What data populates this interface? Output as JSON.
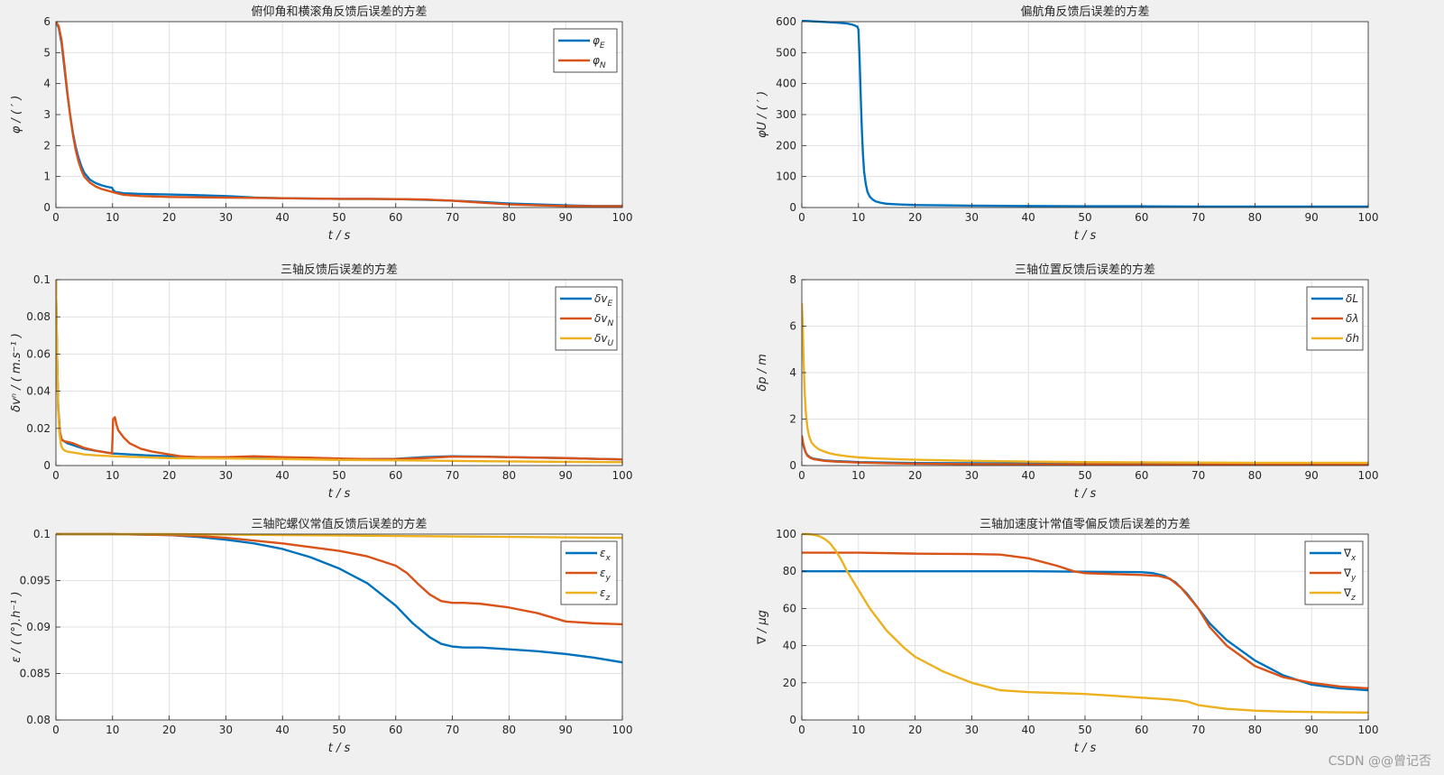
{
  "figure": {
    "background": "#f0f0f0",
    "watermark": "CSDN @@曾记否"
  },
  "colors": {
    "blue": "#0072BD",
    "orange": "#D95319",
    "yellow": "#EDB120",
    "grid": "#e1e1e1",
    "axis": "#262626"
  },
  "chart_data": [
    {
      "id": "attitude-pr",
      "type": "line",
      "title": "俯仰角和横滚角反馈后误差的方差",
      "xlabel": "t / s",
      "ylabel": "φ / ( ′ )",
      "xlim": [
        0,
        100
      ],
      "ylim": [
        0,
        6
      ],
      "xticks": [
        0,
        10,
        20,
        30,
        40,
        50,
        60,
        70,
        80,
        90,
        100
      ],
      "yticks": [
        0,
        1,
        2,
        3,
        4,
        5,
        6
      ],
      "legend_position": "top-right",
      "series": [
        {
          "name": "φE",
          "label_main": "φ",
          "label_sub": "E",
          "color": "blue",
          "x": [
            0,
            0.5,
            1,
            1.5,
            2,
            2.5,
            3,
            3.5,
            4,
            4.5,
            5,
            6,
            7,
            8,
            9,
            9.9,
            10.1,
            10.5,
            12,
            15,
            20,
            25,
            30,
            35,
            40,
            45,
            50,
            55,
            60,
            65,
            70,
            75,
            80,
            85,
            90,
            95,
            100
          ],
          "y": [
            6,
            5.8,
            5.3,
            4.5,
            3.7,
            3.0,
            2.4,
            1.95,
            1.6,
            1.33,
            1.12,
            0.9,
            0.79,
            0.72,
            0.67,
            0.64,
            0.57,
            0.5,
            0.46,
            0.44,
            0.42,
            0.4,
            0.37,
            0.32,
            0.3,
            0.29,
            0.28,
            0.28,
            0.27,
            0.25,
            0.22,
            0.18,
            0.13,
            0.1,
            0.07,
            0.05,
            0.05
          ]
        },
        {
          "name": "φN",
          "label_main": "φ",
          "label_sub": "N",
          "color": "orange",
          "x": [
            0,
            0.5,
            1,
            1.5,
            2,
            2.5,
            3,
            3.5,
            4,
            4.5,
            5,
            6,
            7,
            8,
            9,
            10,
            11,
            12,
            15,
            20,
            25,
            30,
            35,
            40,
            45,
            50,
            55,
            60,
            65,
            70,
            75,
            80,
            85,
            90,
            95,
            100
          ],
          "y": [
            6,
            5.85,
            5.4,
            4.6,
            3.75,
            3.0,
            2.35,
            1.85,
            1.48,
            1.2,
            1.0,
            0.8,
            0.68,
            0.6,
            0.55,
            0.5,
            0.45,
            0.41,
            0.37,
            0.34,
            0.33,
            0.32,
            0.31,
            0.3,
            0.29,
            0.28,
            0.28,
            0.27,
            0.26,
            0.22,
            0.16,
            0.1,
            0.07,
            0.05,
            0.04,
            0.04
          ]
        }
      ]
    },
    {
      "id": "attitude-yaw",
      "type": "line",
      "title": "偏航角反馈后误差的方差",
      "xlabel": "t / s",
      "ylabel": "φU / ( ′ )",
      "xlim": [
        0,
        100
      ],
      "ylim": [
        0,
        600
      ],
      "xticks": [
        0,
        10,
        20,
        30,
        40,
        50,
        60,
        70,
        80,
        90,
        100
      ],
      "yticks": [
        0,
        100,
        200,
        300,
        400,
        500,
        600
      ],
      "series": [
        {
          "name": "φU",
          "color": "blue",
          "x": [
            0,
            2,
            4,
            6,
            8,
            9,
            9.8,
            10,
            10.2,
            10.4,
            10.6,
            10.8,
            11,
            11.3,
            11.6,
            12,
            12.5,
            13,
            14,
            15,
            17,
            20,
            25,
            30,
            40,
            50,
            60,
            70,
            80,
            90,
            100
          ],
          "y": [
            603,
            601,
            599,
            597,
            594,
            590,
            584,
            574,
            480,
            360,
            250,
            170,
            115,
            75,
            50,
            35,
            26,
            20,
            15,
            12,
            10,
            8,
            7,
            6,
            5,
            4,
            4,
            3,
            3,
            3,
            3
          ]
        }
      ]
    },
    {
      "id": "velocity",
      "type": "line",
      "title": "三轴反馈后误差的方差",
      "xlabel": "t / s",
      "ylabel": "δvⁿ / ( m.s⁻¹ )",
      "xlim": [
        0,
        100
      ],
      "ylim": [
        0,
        0.1
      ],
      "xticks": [
        0,
        10,
        20,
        30,
        40,
        50,
        60,
        70,
        80,
        90,
        100
      ],
      "yticks": [
        0,
        0.02,
        0.04,
        0.06,
        0.08,
        0.1
      ],
      "ytick_labels": [
        "0",
        "0.02",
        "0.04",
        "0.06",
        "0.08",
        "0.1"
      ],
      "legend_position": "top-right",
      "series": [
        {
          "name": "δvE",
          "label_main": "δv",
          "label_sub": "E",
          "color": "blue",
          "x": [
            0,
            0.2,
            0.4,
            0.7,
            1,
            1.5,
            2,
            3,
            5,
            7,
            10,
            13,
            16,
            20,
            25,
            30,
            35,
            40,
            45,
            50,
            55,
            60,
            65,
            70,
            75,
            80,
            85,
            90,
            95,
            100
          ],
          "y": [
            0.1,
            0.06,
            0.032,
            0.018,
            0.014,
            0.013,
            0.012,
            0.011,
            0.009,
            0.008,
            0.0065,
            0.006,
            0.0055,
            0.005,
            0.0045,
            0.0045,
            0.0045,
            0.004,
            0.0038,
            0.0035,
            0.0035,
            0.0036,
            0.0045,
            0.005,
            0.0048,
            0.0045,
            0.0042,
            0.004,
            0.0036,
            0.0033
          ]
        },
        {
          "name": "δvN",
          "label_main": "δv",
          "label_sub": "N",
          "color": "orange",
          "x": [
            0,
            0.2,
            0.4,
            0.7,
            1,
            1.5,
            2,
            3,
            5,
            7,
            9.9,
            10.1,
            10.4,
            10.7,
            11,
            12,
            13,
            15,
            17,
            20,
            22,
            25,
            30,
            35,
            40,
            45,
            50,
            55,
            60,
            65,
            70,
            75,
            80,
            85,
            90,
            95,
            100
          ],
          "y": [
            0.1,
            0.058,
            0.03,
            0.018,
            0.014,
            0.013,
            0.0128,
            0.012,
            0.0095,
            0.008,
            0.0065,
            0.025,
            0.026,
            0.022,
            0.019,
            0.015,
            0.012,
            0.009,
            0.0075,
            0.006,
            0.005,
            0.0045,
            0.0045,
            0.005,
            0.0045,
            0.0042,
            0.0038,
            0.0035,
            0.0035,
            0.004,
            0.0048,
            0.0047,
            0.0045,
            0.0043,
            0.004,
            0.0036,
            0.0033
          ]
        },
        {
          "name": "δvU",
          "label_main": "δv",
          "label_sub": "U",
          "color": "yellow",
          "x": [
            0,
            0.2,
            0.4,
            0.6,
            0.9,
            1.2,
            1.6,
            2,
            3,
            4,
            5,
            7,
            10,
            15,
            20,
            30,
            40,
            50,
            60,
            70,
            80,
            90,
            100
          ],
          "y": [
            0.1,
            0.06,
            0.03,
            0.018,
            0.011,
            0.009,
            0.008,
            0.0075,
            0.007,
            0.0065,
            0.006,
            0.0055,
            0.005,
            0.0045,
            0.004,
            0.0038,
            0.0035,
            0.003,
            0.0028,
            0.0025,
            0.0022,
            0.002,
            0.0018
          ]
        }
      ]
    },
    {
      "id": "position",
      "type": "line",
      "title": "三轴位置反馈后误差的方差",
      "xlabel": "t / s",
      "ylabel": "δp / m",
      "xlim": [
        0,
        100
      ],
      "ylim": [
        0,
        8
      ],
      "xticks": [
        0,
        10,
        20,
        30,
        40,
        50,
        60,
        70,
        80,
        90,
        100
      ],
      "yticks": [
        0,
        2,
        4,
        6,
        8
      ],
      "legend_position": "top-right",
      "series": [
        {
          "name": "δL",
          "label_main": "δL",
          "label_sub": "",
          "color": "blue",
          "x": [
            0,
            0.2,
            0.4,
            0.7,
            1,
            1.5,
            2,
            3,
            4,
            6,
            8,
            10,
            15,
            20,
            30,
            40,
            50,
            60,
            70,
            80,
            90,
            100
          ],
          "y": [
            1.2,
            0.95,
            0.75,
            0.55,
            0.45,
            0.35,
            0.3,
            0.26,
            0.22,
            0.19,
            0.17,
            0.15,
            0.13,
            0.11,
            0.1,
            0.09,
            0.08,
            0.08,
            0.07,
            0.07,
            0.07,
            0.07
          ]
        },
        {
          "name": "δλ",
          "label_main": "δλ",
          "label_sub": "",
          "color": "orange",
          "x": [
            0,
            0.2,
            0.4,
            0.7,
            1,
            1.5,
            2,
            3,
            4,
            6,
            8,
            10,
            15,
            20,
            30,
            40,
            50,
            60,
            70,
            80,
            90,
            100
          ],
          "y": [
            1.3,
            1.0,
            0.8,
            0.55,
            0.42,
            0.33,
            0.28,
            0.24,
            0.2,
            0.17,
            0.15,
            0.13,
            0.1,
            0.08,
            0.06,
            0.05,
            0.05,
            0.04,
            0.04,
            0.04,
            0.04,
            0.04
          ]
        },
        {
          "name": "δh",
          "label_main": "δh",
          "label_sub": "",
          "color": "yellow",
          "x": [
            0,
            0.15,
            0.3,
            0.5,
            0.7,
            1,
            1.3,
            1.7,
            2.2,
            3,
            4,
            5,
            6,
            8,
            10,
            13,
            16,
            20,
            30,
            40,
            50,
            60,
            70,
            80,
            90,
            100
          ],
          "y": [
            7.0,
            6.2,
            4.6,
            3.2,
            2.3,
            1.6,
            1.25,
            1.0,
            0.85,
            0.7,
            0.6,
            0.52,
            0.47,
            0.4,
            0.35,
            0.31,
            0.28,
            0.25,
            0.2,
            0.17,
            0.15,
            0.14,
            0.13,
            0.12,
            0.12,
            0.12
          ]
        }
      ]
    },
    {
      "id": "gyro",
      "type": "line",
      "title": "三轴陀螺仪常值反馈后误差的方差",
      "xlabel": "t / s",
      "ylabel": "ε / ( (°).h⁻¹ )",
      "xlim": [
        0,
        100
      ],
      "ylim": [
        0.08,
        0.1
      ],
      "xticks": [
        0,
        10,
        20,
        30,
        40,
        50,
        60,
        70,
        80,
        90,
        100
      ],
      "yticks": [
        0.08,
        0.085,
        0.09,
        0.095,
        0.1
      ],
      "ytick_labels": [
        "0.08",
        "0.085",
        "0.09",
        "0.095",
        "0.1"
      ],
      "legend_position": "top-right",
      "series": [
        {
          "name": "εx",
          "label_main": "ε",
          "label_sub": "x",
          "color": "blue",
          "x": [
            0,
            10,
            20,
            25,
            30,
            35,
            40,
            45,
            50,
            55,
            60,
            63,
            66,
            68,
            70,
            72,
            75,
            80,
            85,
            90,
            95,
            100
          ],
          "y": [
            0.1,
            0.1,
            0.0999,
            0.0997,
            0.0994,
            0.099,
            0.0984,
            0.0975,
            0.0963,
            0.0947,
            0.0923,
            0.0904,
            0.0889,
            0.0882,
            0.0879,
            0.0878,
            0.0878,
            0.0876,
            0.0874,
            0.0871,
            0.0867,
            0.0862
          ]
        },
        {
          "name": "εy",
          "label_main": "ε",
          "label_sub": "y",
          "color": "orange",
          "x": [
            0,
            10,
            20,
            25,
            30,
            35,
            40,
            45,
            50,
            55,
            60,
            62,
            64,
            66,
            68,
            70,
            72,
            75,
            80,
            85,
            90,
            95,
            100
          ],
          "y": [
            0.1,
            0.1,
            0.0999,
            0.0998,
            0.0996,
            0.0993,
            0.099,
            0.0986,
            0.0982,
            0.0976,
            0.0966,
            0.0958,
            0.0946,
            0.0935,
            0.0928,
            0.0926,
            0.0926,
            0.0925,
            0.0921,
            0.0915,
            0.0906,
            0.0904,
            0.0903
          ]
        },
        {
          "name": "εz",
          "label_main": "ε",
          "label_sub": "z",
          "color": "yellow",
          "x": [
            0,
            20,
            40,
            60,
            80,
            100
          ],
          "y": [
            0.1,
            0.1,
            0.0999,
            0.0998,
            0.0997,
            0.0996
          ]
        }
      ]
    },
    {
      "id": "accel",
      "type": "line",
      "title": "三轴加速度计常值零偏反馈后误差的方差",
      "xlabel": "t / s",
      "ylabel": "∇ / μg",
      "xlim": [
        0,
        100
      ],
      "ylim": [
        0,
        100
      ],
      "xticks": [
        0,
        10,
        20,
        30,
        40,
        50,
        60,
        70,
        80,
        90,
        100
      ],
      "yticks": [
        0,
        20,
        40,
        60,
        80,
        100
      ],
      "legend_position": "top-right",
      "series": [
        {
          "name": "∇x",
          "label_main": "∇",
          "label_sub": "x",
          "color": "blue",
          "x": [
            0,
            20,
            40,
            60,
            62,
            64,
            66,
            68,
            70,
            72,
            75,
            80,
            85,
            90,
            95,
            100
          ],
          "y": [
            80,
            80,
            80,
            79.5,
            79,
            77.5,
            74,
            68,
            60,
            52,
            43,
            32,
            24,
            19,
            17,
            16
          ]
        },
        {
          "name": "∇y",
          "label_main": "∇",
          "label_sub": "y",
          "color": "orange",
          "x": [
            0,
            10,
            20,
            30,
            35,
            40,
            45,
            48,
            50,
            55,
            60,
            63,
            65,
            67,
            70,
            72,
            75,
            80,
            85,
            90,
            95,
            100
          ],
          "y": [
            90,
            90,
            89.5,
            89.3,
            89,
            87,
            83,
            80,
            79,
            78.5,
            78,
            77.5,
            76,
            71,
            60,
            50,
            40,
            29,
            23,
            20,
            18,
            17
          ]
        },
        {
          "name": "∇z",
          "label_main": "∇",
          "label_sub": "z",
          "color": "yellow",
          "x": [
            0,
            1,
            2,
            3,
            4,
            5,
            6,
            7,
            8,
            10,
            12,
            15,
            18,
            20,
            25,
            30,
            35,
            40,
            45,
            50,
            55,
            60,
            65,
            68,
            70,
            75,
            80,
            85,
            90,
            95,
            100
          ],
          "y": [
            100,
            100,
            99.7,
            99,
            97.5,
            95,
            91,
            86,
            80,
            70,
            60,
            48,
            39,
            34,
            26,
            20,
            16,
            15,
            14.5,
            14,
            13,
            12,
            11,
            10,
            8,
            6,
            5,
            4.5,
            4.3,
            4.1,
            4
          ]
        }
      ]
    }
  ]
}
